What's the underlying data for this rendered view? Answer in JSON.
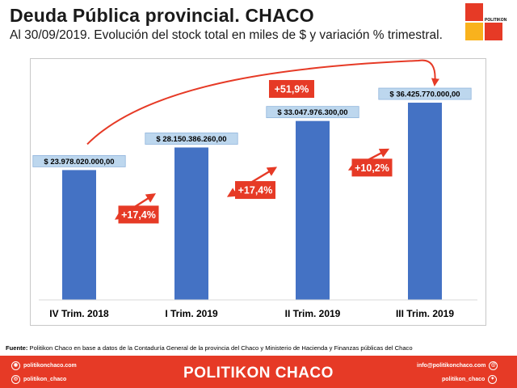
{
  "header": {
    "title": "Deuda Pública provincial. CHACO",
    "subtitle": "Al 30/09/2019. Evolución del stock total en miles de $ y variación % trimestral.",
    "logo_text": "POLITIKON"
  },
  "colors": {
    "bar": "#4472c4",
    "accent": "#e63a26",
    "value_box": "#bdd7ee",
    "logo_red": "#e63a26",
    "logo_yellow": "#f9b21d"
  },
  "chart_data": {
    "type": "bar",
    "categories": [
      "IV Trim. 2018",
      "I Trim. 2019",
      "II Trim. 2019",
      "III Trim. 2019"
    ],
    "values": [
      23978020000,
      28150386260,
      33047976300,
      36425770000
    ],
    "value_labels": [
      "$ 23.978.020.000,00",
      "$ 28.150.386.260,00",
      "$ 33.047.976.300,00",
      "$ 36.425.770.000,00"
    ],
    "ylim": [
      0,
      43000000000
    ],
    "changes": [
      "+17,4%",
      "+17,4%",
      "+10,2%"
    ],
    "total_change": "+51,9%",
    "title": "",
    "xlabel": "",
    "ylabel": ""
  },
  "source": {
    "label": "Fuente:",
    "text": " Politikon Chaco en base a datos de la Contaduría General de la provincia del Chaco y Ministerio de Hacienda y Finanzas públicas del Chaco"
  },
  "footer": {
    "website": "politikonchaco.com",
    "instagram": "politikon_chaco",
    "brand": "POLITIKON CHACO",
    "email": "info@politikonchaco.com",
    "twitter": "politikon_chaco"
  }
}
